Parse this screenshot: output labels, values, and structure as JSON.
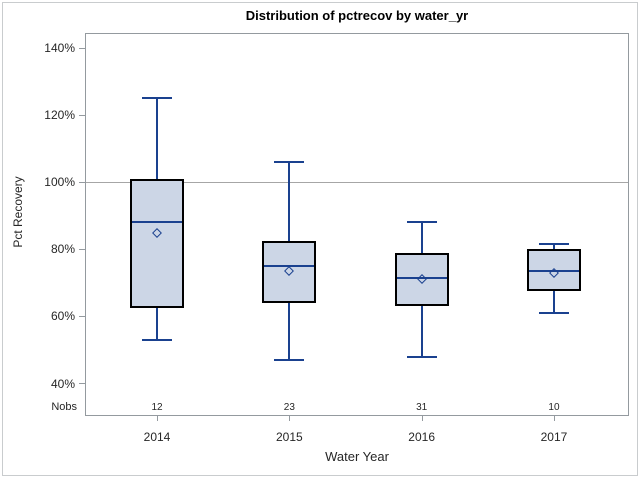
{
  "title": "Distribution of pctrecov by water_yr",
  "chart_data": {
    "type": "box",
    "title": "Distribution of pctrecov by water_yr",
    "xlabel": "Water Year",
    "ylabel": "Pct Recovery",
    "ylim": [
      40,
      140
    ],
    "yticks": [
      {
        "value": 140,
        "label": "140%"
      },
      {
        "value": 120,
        "label": "120%"
      },
      {
        "value": 100,
        "label": "100%"
      },
      {
        "value": 80,
        "label": "80%"
      },
      {
        "value": 60,
        "label": "60%"
      },
      {
        "value": 40,
        "label": "40%"
      }
    ],
    "reference_line": 100,
    "grid": "reference-line-only",
    "legend": "none",
    "nobs_label": "Nobs",
    "categories": [
      "2014",
      "2015",
      "2016",
      "2017"
    ],
    "series": [
      {
        "category": "2014",
        "nobs": "12",
        "whisker_low": 53,
        "q1": 62.5,
        "median": 88,
        "mean": 85,
        "q3": 101,
        "whisker_high": 125
      },
      {
        "category": "2015",
        "nobs": "23",
        "whisker_low": 47,
        "q1": 64,
        "median": 75,
        "mean": 73.5,
        "q3": 82.5,
        "whisker_high": 106
      },
      {
        "category": "2016",
        "nobs": "31",
        "whisker_low": 48,
        "q1": 63,
        "median": 71.5,
        "mean": 71,
        "q3": 79,
        "whisker_high": 88
      },
      {
        "category": "2017",
        "nobs": "10",
        "whisker_low": 61,
        "q1": 67.5,
        "median": 73.5,
        "mean": 73,
        "q3": 80,
        "whisker_high": 81.5
      }
    ],
    "colors": {
      "box_fill": "#ccd6e6",
      "box_border": "#000000",
      "line_blue": "#1a418f",
      "reference_line": "#a6a6a6",
      "frame": "#949a9f",
      "text": "#262626",
      "title_text": "#000000",
      "outer_border": "#c9ccce"
    }
  }
}
